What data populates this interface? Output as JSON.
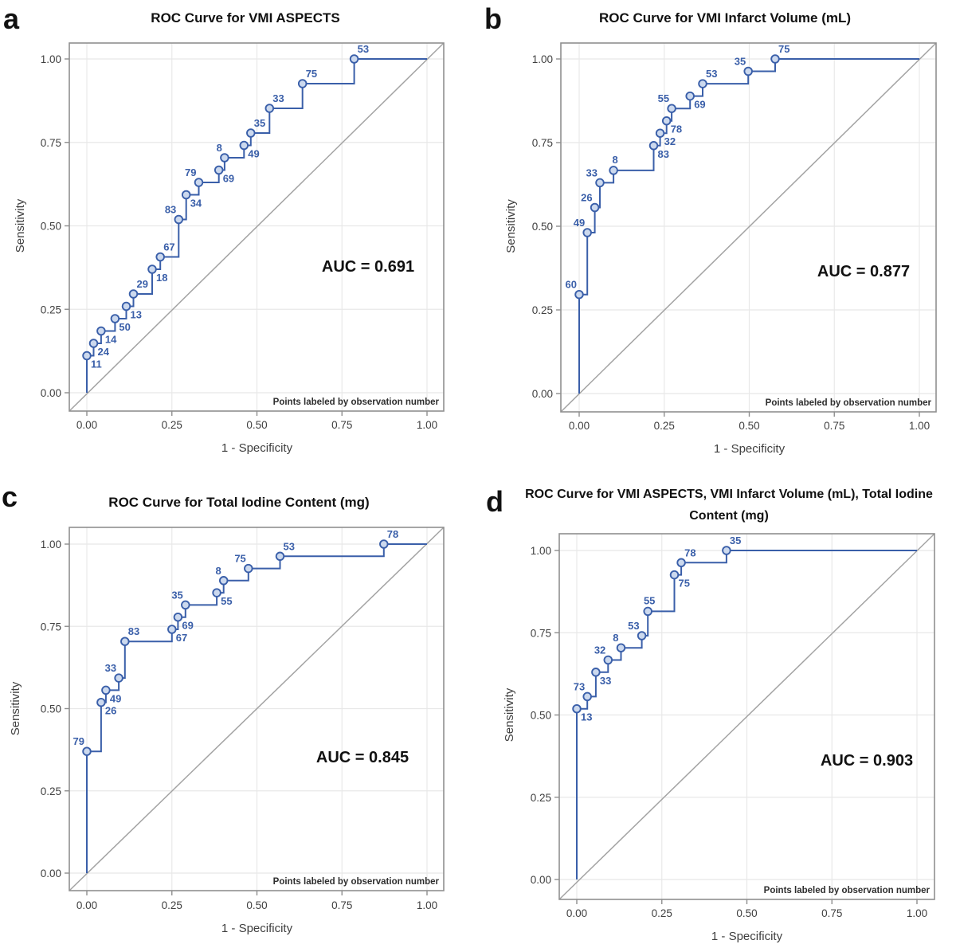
{
  "figure": {
    "type": "roc-curve-grid",
    "xlabel": "1 - Specificity",
    "ylabel": "Sensitivity",
    "footnote": "Points labeled by observation number",
    "axis_tick_labels": [
      "0.00",
      "0.25",
      "0.50",
      "0.75",
      "1.00"
    ],
    "curve_color": "#3a5fa9",
    "marker_fill": "#ccd9ee",
    "grid_color": "#e8e8e8",
    "frame_color": "#8f8f8f",
    "diagonal_color": "#a3a3a3",
    "tick_text_color": "#3f3f3f",
    "title_color": "#111111",
    "footnote_color": "#2e2e2e"
  },
  "chart_data": [
    {
      "type": "line",
      "subtype": "roc-step",
      "panel": "a",
      "title_lines": [
        "ROC Curve for VMI ASPECTS"
      ],
      "auc": 0.691,
      "auc_text": "AUC = 0.691",
      "xlabel": "1 - Specificity",
      "ylabel": "Sensitivity",
      "footnote": "Points labeled by observation number",
      "xlim": [
        0,
        1
      ],
      "ylim": [
        0,
        1
      ],
      "x_ticks": [
        0,
        0.25,
        0.5,
        0.75,
        1
      ],
      "y_ticks": [
        0,
        0.25,
        0.5,
        0.75,
        1
      ],
      "x_tick_labels": [
        "0.00",
        "0.25",
        "0.50",
        "0.75",
        "1.00"
      ],
      "y_tick_labels": [
        "0.00",
        "0.25",
        "0.50",
        "0.75",
        "1.00"
      ],
      "grid": true,
      "diagonal_reference": true,
      "points": [
        {
          "obs": "11",
          "x": 0.0,
          "y": 0.111,
          "lp": "br"
        },
        {
          "obs": "24",
          "x": 0.02,
          "y": 0.148,
          "lp": "br"
        },
        {
          "obs": "14",
          "x": 0.042,
          "y": 0.185,
          "lp": "br"
        },
        {
          "obs": "50",
          "x": 0.083,
          "y": 0.222,
          "lp": "br"
        },
        {
          "obs": "13",
          "x": 0.116,
          "y": 0.259,
          "lp": "br"
        },
        {
          "obs": "29",
          "x": 0.137,
          "y": 0.296,
          "lp": "tr"
        },
        {
          "obs": "18",
          "x": 0.192,
          "y": 0.37,
          "lp": "br"
        },
        {
          "obs": "67",
          "x": 0.216,
          "y": 0.407,
          "lp": "tr"
        },
        {
          "obs": "83",
          "x": 0.27,
          "y": 0.519,
          "lp": "tl"
        },
        {
          "obs": "34",
          "x": 0.292,
          "y": 0.593,
          "lp": "br"
        },
        {
          "obs": "79",
          "x": 0.329,
          "y": 0.63,
          "lp": "tl"
        },
        {
          "obs": "69",
          "x": 0.388,
          "y": 0.667,
          "lp": "br"
        },
        {
          "obs": "8",
          "x": 0.405,
          "y": 0.704,
          "lp": "tl"
        },
        {
          "obs": "49",
          "x": 0.462,
          "y": 0.741,
          "lp": "br"
        },
        {
          "obs": "35",
          "x": 0.482,
          "y": 0.778,
          "lp": "tr"
        },
        {
          "obs": "33",
          "x": 0.537,
          "y": 0.852,
          "lp": "tr"
        },
        {
          "obs": "75",
          "x": 0.634,
          "y": 0.926,
          "lp": "tr"
        },
        {
          "obs": "53",
          "x": 0.786,
          "y": 1.0,
          "lp": "tr"
        }
      ]
    },
    {
      "type": "line",
      "subtype": "roc-step",
      "panel": "b",
      "title_lines": [
        "ROC Curve for VMI Infarct Volume (mL)"
      ],
      "auc": 0.877,
      "auc_text": "AUC = 0.877",
      "xlabel": "1 - Specificity",
      "ylabel": "Sensitivity",
      "footnote": "Points labeled by observation number",
      "xlim": [
        0,
        1
      ],
      "ylim": [
        0,
        1
      ],
      "x_ticks": [
        0,
        0.25,
        0.5,
        0.75,
        1
      ],
      "y_ticks": [
        0,
        0.25,
        0.5,
        0.75,
        1
      ],
      "x_tick_labels": [
        "0.00",
        "0.25",
        "0.50",
        "0.75",
        "1.00"
      ],
      "y_tick_labels": [
        "0.00",
        "0.25",
        "0.50",
        "0.75",
        "1.00"
      ],
      "grid": true,
      "diagonal_reference": true,
      "points": [
        {
          "obs": "60",
          "x": 0.0,
          "y": 0.296,
          "lp": "tl"
        },
        {
          "obs": "49",
          "x": 0.024,
          "y": 0.481,
          "lp": "tl"
        },
        {
          "obs": "26",
          "x": 0.046,
          "y": 0.556,
          "lp": "tl"
        },
        {
          "obs": "33",
          "x": 0.061,
          "y": 0.63,
          "lp": "tl"
        },
        {
          "obs": "8",
          "x": 0.101,
          "y": 0.667,
          "lp": "t"
        },
        {
          "obs": "83",
          "x": 0.219,
          "y": 0.741,
          "lp": "br"
        },
        {
          "obs": "32",
          "x": 0.238,
          "y": 0.778,
          "lp": "br"
        },
        {
          "obs": "78",
          "x": 0.257,
          "y": 0.815,
          "lp": "br"
        },
        {
          "obs": "55",
          "x": 0.272,
          "y": 0.852,
          "lp": "tl"
        },
        {
          "obs": "69",
          "x": 0.326,
          "y": 0.889,
          "lp": "br"
        },
        {
          "obs": "53",
          "x": 0.363,
          "y": 0.926,
          "lp": "tr"
        },
        {
          "obs": "35",
          "x": 0.497,
          "y": 0.963,
          "lp": "tl"
        },
        {
          "obs": "75",
          "x": 0.576,
          "y": 1.0,
          "lp": "tr"
        }
      ]
    },
    {
      "type": "line",
      "subtype": "roc-step",
      "panel": "c",
      "title_lines": [
        "ROC Curve for Total Iodine Content (mg)"
      ],
      "auc": 0.845,
      "auc_text": "AUC = 0.845",
      "xlabel": "1 - Specificity",
      "ylabel": "Sensitivity",
      "footnote": "Points labeled by observation number",
      "xlim": [
        0,
        1
      ],
      "ylim": [
        0,
        1
      ],
      "x_ticks": [
        0,
        0.25,
        0.5,
        0.75,
        1
      ],
      "y_ticks": [
        0,
        0.25,
        0.5,
        0.75,
        1
      ],
      "x_tick_labels": [
        "0.00",
        "0.25",
        "0.50",
        "0.75",
        "1.00"
      ],
      "y_tick_labels": [
        "0.00",
        "0.25",
        "0.50",
        "0.75",
        "1.00"
      ],
      "grid": true,
      "diagonal_reference": true,
      "points": [
        {
          "obs": "79",
          "x": 0.0,
          "y": 0.37,
          "lp": "tl"
        },
        {
          "obs": "26",
          "x": 0.042,
          "y": 0.519,
          "lp": "br"
        },
        {
          "obs": "49",
          "x": 0.056,
          "y": 0.556,
          "lp": "br"
        },
        {
          "obs": "33",
          "x": 0.094,
          "y": 0.593,
          "lp": "tl"
        },
        {
          "obs": "83",
          "x": 0.112,
          "y": 0.704,
          "lp": "tr"
        },
        {
          "obs": "67",
          "x": 0.25,
          "y": 0.741,
          "lp": "br"
        },
        {
          "obs": "69",
          "x": 0.268,
          "y": 0.778,
          "lp": "br"
        },
        {
          "obs": "35",
          "x": 0.29,
          "y": 0.815,
          "lp": "tl"
        },
        {
          "obs": "55",
          "x": 0.382,
          "y": 0.852,
          "lp": "br"
        },
        {
          "obs": "8",
          "x": 0.402,
          "y": 0.889,
          "lp": "tl"
        },
        {
          "obs": "75",
          "x": 0.475,
          "y": 0.926,
          "lp": "tl"
        },
        {
          "obs": "53",
          "x": 0.568,
          "y": 0.963,
          "lp": "tr"
        },
        {
          "obs": "78",
          "x": 0.873,
          "y": 1.0,
          "lp": "tr"
        }
      ]
    },
    {
      "type": "line",
      "subtype": "roc-step",
      "panel": "d",
      "title_lines": [
        "ROC Curve for VMI ASPECTS, VMI Infarct Volume (mL), Total Iodine",
        "Content (mg)"
      ],
      "auc": 0.903,
      "auc_text": "AUC = 0.903",
      "xlabel": "1 - Specificity",
      "ylabel": "Sensitivity",
      "footnote": "Points labeled by observation number",
      "xlim": [
        0,
        1
      ],
      "ylim": [
        0,
        1
      ],
      "x_ticks": [
        0,
        0.25,
        0.5,
        0.75,
        1
      ],
      "y_ticks": [
        0,
        0.25,
        0.5,
        0.75,
        1
      ],
      "x_tick_labels": [
        "0.00",
        "0.25",
        "0.50",
        "0.75",
        "1.00"
      ],
      "y_tick_labels": [
        "0.00",
        "0.25",
        "0.50",
        "0.75",
        "1.00"
      ],
      "grid": true,
      "diagonal_reference": true,
      "points": [
        {
          "obs": "13",
          "x": 0.0,
          "y": 0.519,
          "lp": "br"
        },
        {
          "obs": "73",
          "x": 0.031,
          "y": 0.556,
          "lp": "tl"
        },
        {
          "obs": "33",
          "x": 0.056,
          "y": 0.63,
          "lp": "br"
        },
        {
          "obs": "32",
          "x": 0.092,
          "y": 0.667,
          "lp": "tl"
        },
        {
          "obs": "8",
          "x": 0.13,
          "y": 0.704,
          "lp": "tl"
        },
        {
          "obs": "53",
          "x": 0.191,
          "y": 0.741,
          "lp": "tl"
        },
        {
          "obs": "55",
          "x": 0.209,
          "y": 0.815,
          "lp": "t"
        },
        {
          "obs": "75",
          "x": 0.287,
          "y": 0.926,
          "lp": "br"
        },
        {
          "obs": "78",
          "x": 0.307,
          "y": 0.963,
          "lp": "tr"
        },
        {
          "obs": "35",
          "x": 0.44,
          "y": 1.0,
          "lp": "tr"
        }
      ]
    }
  ]
}
